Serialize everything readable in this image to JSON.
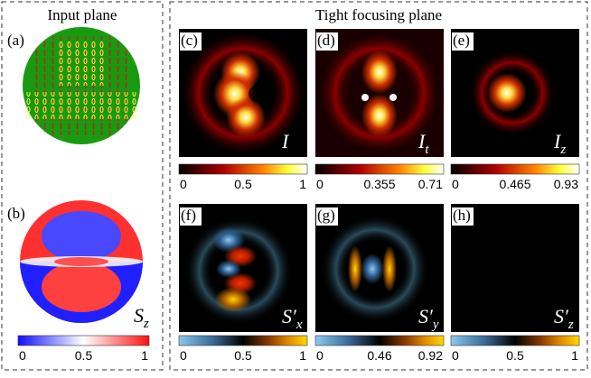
{
  "header": {
    "left": "Input plane",
    "right": "Tight focusing plane"
  },
  "panels": [
    {
      "label": "(a)"
    },
    {
      "label": "(b)",
      "symbol": "S",
      "subscript": "z",
      "colormap": "bwr",
      "ticks": [
        0,
        0.5,
        1
      ]
    },
    {
      "label": "(c)",
      "symbol": "I",
      "colormap": "hot",
      "ticks": [
        0,
        0.5,
        1
      ]
    },
    {
      "label": "(d)",
      "symbol": "I",
      "subscript": "t",
      "colormap": "hot",
      "ticks": [
        0,
        0.355,
        0.71
      ]
    },
    {
      "label": "(e)",
      "symbol": "I",
      "subscript": "z",
      "colormap": "hot",
      "ticks": [
        0,
        0.465,
        0.93
      ]
    },
    {
      "label": "(f)",
      "symbol": "S′",
      "subscript": "x",
      "colormap": "div",
      "ticks": [
        0,
        0.5,
        1
      ]
    },
    {
      "label": "(g)",
      "symbol": "S′",
      "subscript": "y",
      "colormap": "div",
      "ticks": [
        0,
        0.46,
        0.92
      ]
    },
    {
      "label": "(h)",
      "symbol": "S′",
      "subscript": "z",
      "colormap": "div",
      "ticks": [
        0,
        0.5,
        1
      ]
    }
  ]
}
